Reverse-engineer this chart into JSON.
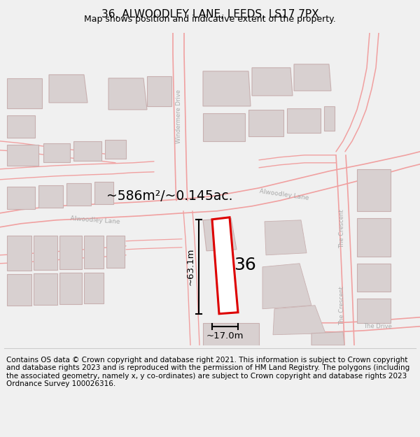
{
  "title": "36, ALWOODLEY LANE, LEEDS, LS17 7PX",
  "subtitle": "Map shows position and indicative extent of the property.",
  "area_label": "~586m²/~0.145ac.",
  "width_label": "~17.0m",
  "height_label": "~63.1m",
  "number_label": "36",
  "footer": "Contains OS data © Crown copyright and database right 2021. This information is subject to Crown copyright and database rights 2023 and is reproduced with the permission of HM Land Registry. The polygons (including the associated geometry, namely x, y co-ordinates) are subject to Crown copyright and database rights 2023 Ordnance Survey 100026316.",
  "bg_color": "#ffffff",
  "road_line_color": "#f0a0a0",
  "building_color": "#d8d0d0",
  "building_edge": "#c8b0b0",
  "highlight_color": "#dd0000",
  "dim_color": "#000000",
  "title_fontsize": 11,
  "subtitle_fontsize": 9,
  "label_color": "#aaaaaa",
  "footer_fontsize": 7.5,
  "footer_bg": "#f0f0f0"
}
